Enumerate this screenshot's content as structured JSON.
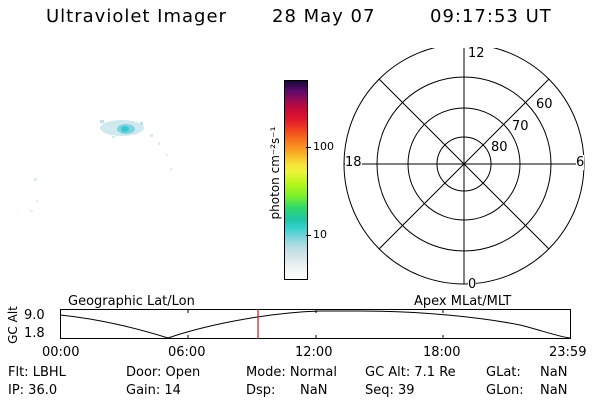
{
  "header": {
    "title": "Ultraviolet Imager",
    "date": "28 May 07",
    "time": "09:17:53 UT"
  },
  "colorbar": {
    "unit_label": "photon cm⁻²s⁻¹",
    "ticks": [
      "100",
      "10"
    ]
  },
  "polar_plot": {
    "mlt_labels": {
      "top": "12",
      "left": "18",
      "right": "6",
      "bottom": "0"
    },
    "lat_labels": [
      "60",
      "70",
      "80"
    ]
  },
  "track_panel": {
    "y_axis_label": "GC Alt",
    "y_ticks": [
      "9.0",
      "1.8"
    ],
    "left_title": "Geographic Lat/Lon",
    "right_title": "Apex MLat/MLT",
    "x_ticks": [
      "00:00",
      "06:00",
      "12:00",
      "18:00",
      "23:59"
    ]
  },
  "status": {
    "row1": {
      "flt": "Flt: LBHL",
      "door": "Door: Open",
      "mode": "Mode: Normal",
      "gc_alt": "GC Alt: 7.1 Re",
      "glat_label": "GLat:",
      "glat_value": "NaN"
    },
    "row2": {
      "ip": "IP: 36.0",
      "gain": "Gain: 14",
      "dsp_label": "Dsp:",
      "dsp_value": "NaN",
      "seq": "Seq: 39",
      "glon_label": "GLon:",
      "glon_value": "NaN"
    }
  },
  "colors": {
    "marker_line": "#d01818",
    "speckle": "#bfe3ea",
    "speckle_bright": "#35c8d0"
  }
}
